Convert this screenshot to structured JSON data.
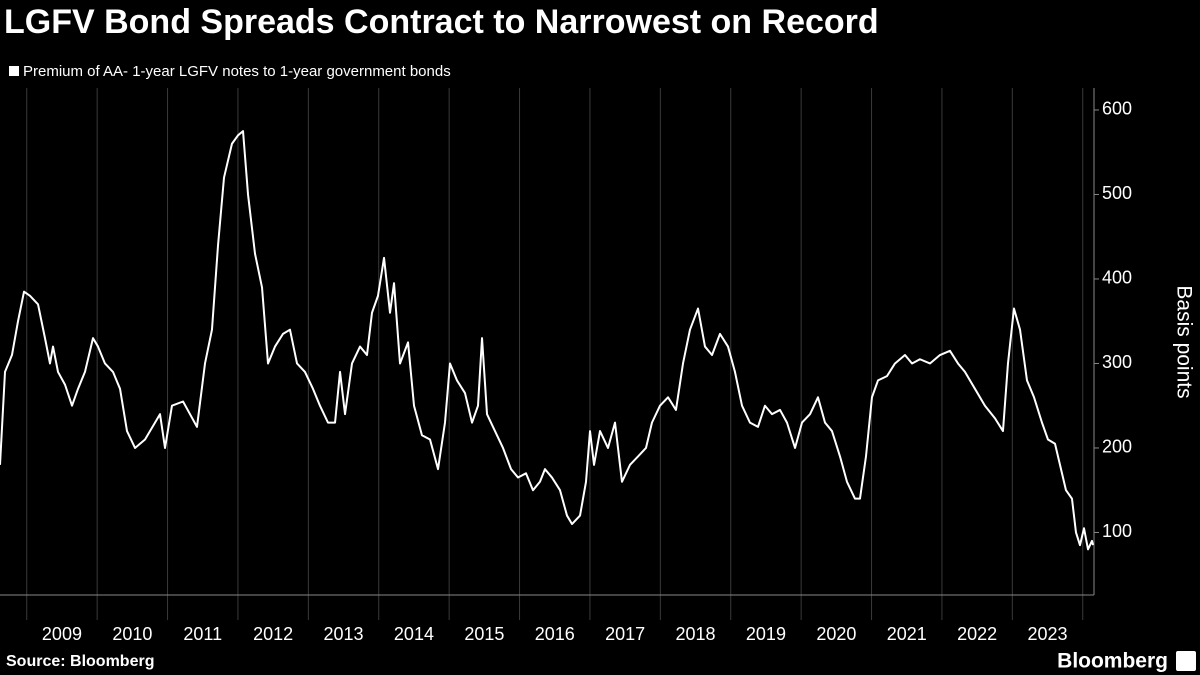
{
  "chart_data": {
    "type": "line",
    "title": "LGFV Bond Spreads Contract to Narrowest on Record",
    "series": [
      {
        "name": "Premium of AA- 1-year LGFV notes to 1-year government bonds",
        "color": "#ffffff",
        "x": [
          2008.62,
          2008.691,
          2008.79,
          2008.876,
          2008.961,
          2009.046,
          2009.16,
          2009.259,
          2009.33,
          2009.373,
          2009.444,
          2009.543,
          2009.643,
          2009.728,
          2009.827,
          2009.941,
          2010.012,
          2010.111,
          2010.225,
          2010.325,
          2010.424,
          2010.538,
          2010.68,
          2010.822,
          2010.893,
          2010.964,
          2011.063,
          2011.22,
          2011.319,
          2011.418,
          2011.532,
          2011.631,
          2011.717,
          2011.802,
          2011.915,
          2012.001,
          2012.072,
          2012.143,
          2012.242,
          2012.342,
          2012.427,
          2012.526,
          2012.64,
          2012.739,
          2012.839,
          2012.952,
          2013.066,
          2013.165,
          2013.279,
          2013.379,
          2013.45,
          2013.521,
          2013.62,
          2013.734,
          2013.833,
          2013.904,
          2013.989,
          2014.075,
          2014.16,
          2014.217,
          2014.302,
          2014.416,
          2014.501,
          2014.614,
          2014.728,
          2014.842,
          2014.941,
          2015.012,
          2015.111,
          2015.225,
          2015.325,
          2015.41,
          2015.467,
          2015.538,
          2015.651,
          2015.765,
          2015.879,
          2015.978,
          2016.092,
          2016.191,
          2016.29,
          2016.361,
          2016.461,
          2016.575,
          2016.674,
          2016.745,
          2016.859,
          2016.944,
          2017.001,
          2017.058,
          2017.143,
          2017.256,
          2017.356,
          2017.455,
          2017.569,
          2017.683,
          2017.796,
          2017.881,
          2017.995,
          2018.109,
          2018.222,
          2018.322,
          2018.421,
          2018.535,
          2018.634,
          2018.734,
          2018.847,
          2018.961,
          2019.06,
          2019.16,
          2019.273,
          2019.387,
          2019.486,
          2019.586,
          2019.7,
          2019.799,
          2019.913,
          2020.012,
          2020.126,
          2020.239,
          2020.339,
          2020.438,
          2020.552,
          2020.651,
          2020.765,
          2020.836,
          2020.921,
          2021.006,
          2021.092,
          2021.219,
          2021.333,
          2021.475,
          2021.575,
          2021.688,
          2021.83,
          2021.972,
          2022.114,
          2022.228,
          2022.327,
          2022.469,
          2022.611,
          2022.754,
          2022.867,
          2022.938,
          2023.023,
          2023.109,
          2023.208,
          2023.308,
          2023.421,
          2023.506,
          2023.606,
          2023.677,
          2023.762,
          2023.847,
          2023.904,
          2023.961,
          2024.018,
          2024.075,
          2024.131,
          2024.146
        ],
        "values": [
          180,
          290,
          310,
          350,
          385,
          380,
          370,
          330,
          300,
          320,
          290,
          275,
          250,
          270,
          290,
          330,
          320,
          300,
          290,
          270,
          220,
          200,
          210,
          230,
          240,
          200,
          250,
          255,
          240,
          225,
          300,
          340,
          440,
          520,
          560,
          570,
          575,
          500,
          430,
          390,
          300,
          320,
          335,
          340,
          300,
          290,
          270,
          250,
          230,
          230,
          290,
          240,
          300,
          320,
          310,
          360,
          380,
          425,
          360,
          395,
          300,
          325,
          250,
          215,
          210,
          175,
          230,
          300,
          280,
          265,
          230,
          250,
          330,
          240,
          220,
          200,
          175,
          165,
          170,
          150,
          160,
          175,
          165,
          150,
          120,
          110,
          120,
          160,
          220,
          180,
          220,
          200,
          230,
          160,
          180,
          190,
          200,
          230,
          250,
          260,
          245,
          300,
          340,
          365,
          320,
          310,
          335,
          320,
          290,
          250,
          230,
          225,
          250,
          240,
          245,
          230,
          200,
          230,
          240,
          260,
          230,
          220,
          190,
          160,
          140,
          140,
          190,
          260,
          280,
          285,
          300,
          310,
          300,
          305,
          300,
          310,
          315,
          300,
          290,
          270,
          250,
          235,
          220,
          300,
          365,
          340,
          280,
          260,
          230,
          210,
          205,
          180,
          150,
          140,
          100,
          85,
          105,
          80,
          90,
          85
        ]
      }
    ],
    "xlim": [
      2008.62,
      2024.16
    ],
    "xticks": [
      {
        "value": 2009.5,
        "label": "2009"
      },
      {
        "value": 2010.5,
        "label": "2010"
      },
      {
        "value": 2011.5,
        "label": "2011"
      },
      {
        "value": 2012.5,
        "label": "2012"
      },
      {
        "value": 2013.5,
        "label": "2013"
      },
      {
        "value": 2014.5,
        "label": "2014"
      },
      {
        "value": 2015.5,
        "label": "2015"
      },
      {
        "value": 2016.5,
        "label": "2016"
      },
      {
        "value": 2017.5,
        "label": "2017"
      },
      {
        "value": 2018.5,
        "label": "2018"
      },
      {
        "value": 2019.5,
        "label": "2019"
      },
      {
        "value": 2020.5,
        "label": "2020"
      },
      {
        "value": 2021.5,
        "label": "2021"
      },
      {
        "value": 2022.5,
        "label": "2022"
      },
      {
        "value": 2023.5,
        "label": "2023"
      }
    ],
    "xgrid": [
      2009,
      2010,
      2011,
      2012,
      2013,
      2014,
      2015,
      2016,
      2017,
      2018,
      2019,
      2020,
      2021,
      2022,
      2023,
      2024
    ],
    "ylim": [
      26,
      626
    ],
    "yticks": [
      100,
      200,
      300,
      400,
      500,
      600
    ],
    "ylabel": "Basis points",
    "source": "Source: Bloomberg",
    "brand": "Bloomberg"
  }
}
